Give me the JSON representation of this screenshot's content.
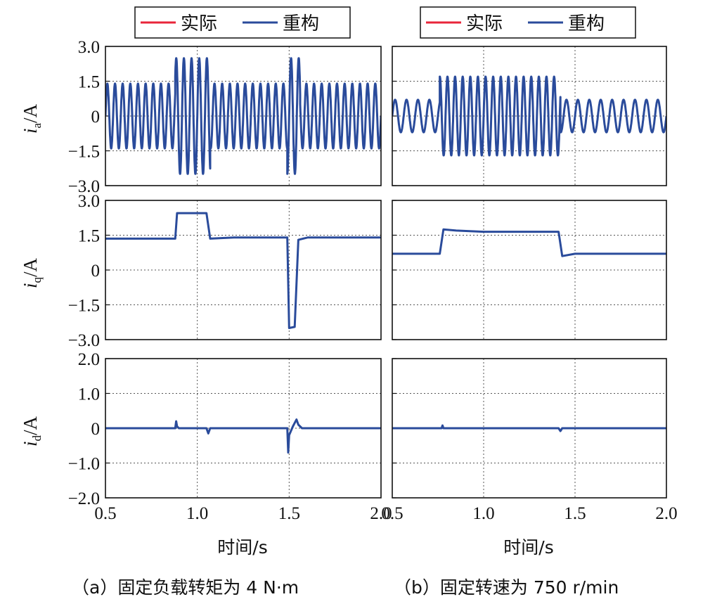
{
  "legend": {
    "actual": "实际",
    "reconstructed": "重构",
    "actual_color": "#e8253a",
    "reconstructed_color": "#2a4b9b"
  },
  "xlabel": "时间/s",
  "ylabels": [
    "i_a/A",
    "i_q/A",
    "i_d/A"
  ],
  "captions": {
    "a": "（a）固定负载转矩为 4 N·m",
    "b": "（b）固定转速为 750 r/min"
  },
  "chart_data": [
    {
      "type": "line",
      "panel": "a-top",
      "ylabel": "i_a/A",
      "xlim": [
        0.5,
        2.0
      ],
      "ylim": [
        -3.0,
        3.0
      ],
      "yticks": [
        "3.0",
        "1.5",
        "0",
        "−1.5",
        "−3.0"
      ],
      "series": [
        {
          "name": "实际",
          "signal": "sine",
          "segments": [
            {
              "x": [
                0.5,
                0.88
              ],
              "amplitude": 1.4,
              "freq": 24
            },
            {
              "x": [
                0.88,
                1.07
              ],
              "amplitude": 2.5,
              "freq": 24
            },
            {
              "x": [
                1.07,
                1.49
              ],
              "amplitude": 1.4,
              "freq": 24
            },
            {
              "x": [
                1.49,
                1.56
              ],
              "amplitude": 2.5,
              "freq": 24
            },
            {
              "x": [
                1.56,
                2.0
              ],
              "amplitude": 1.4,
              "freq": 24
            }
          ]
        },
        {
          "name": "重构",
          "signal": "sine",
          "segments": [
            {
              "x": [
                0.5,
                0.88
              ],
              "amplitude": 1.4,
              "freq": 24
            },
            {
              "x": [
                0.88,
                1.07
              ],
              "amplitude": 2.5,
              "freq": 24
            },
            {
              "x": [
                1.07,
                1.49
              ],
              "amplitude": 1.4,
              "freq": 24
            },
            {
              "x": [
                1.49,
                1.56
              ],
              "amplitude": 2.5,
              "freq": 24
            },
            {
              "x": [
                1.56,
                2.0
              ],
              "amplitude": 1.4,
              "freq": 24
            }
          ]
        }
      ]
    },
    {
      "type": "line",
      "panel": "a-mid",
      "ylabel": "i_q/A",
      "xlim": [
        0.5,
        2.0
      ],
      "ylim": [
        -3.0,
        3.0
      ],
      "yticks": [
        "3.0",
        "1.5",
        "0",
        "−1.5",
        "−3.0"
      ],
      "series": [
        {
          "name": "实际",
          "x": [
            0.5,
            0.88,
            0.89,
            1.05,
            1.07,
            1.2,
            1.49,
            1.5,
            1.53,
            1.55,
            1.6,
            2.0
          ],
          "y": [
            1.35,
            1.35,
            2.45,
            2.45,
            1.35,
            1.4,
            1.4,
            -2.5,
            -2.45,
            1.3,
            1.4,
            1.4
          ]
        },
        {
          "name": "重构",
          "x": [
            0.5,
            0.88,
            0.89,
            1.05,
            1.07,
            1.2,
            1.49,
            1.5,
            1.53,
            1.55,
            1.6,
            2.0
          ],
          "y": [
            1.35,
            1.35,
            2.45,
            2.45,
            1.35,
            1.4,
            1.4,
            -2.5,
            -2.45,
            1.3,
            1.4,
            1.4
          ]
        }
      ]
    },
    {
      "type": "line",
      "panel": "a-bot",
      "ylabel": "i_d/A",
      "xlabel": "时间/s",
      "xlim": [
        0.5,
        2.0
      ],
      "ylim": [
        -2.0,
        2.0
      ],
      "yticks": [
        "2.0",
        "1.0",
        "0",
        "−1.0",
        "−2.0"
      ],
      "xticks": [
        "0.5",
        "1.0",
        "1.5",
        "2.0"
      ],
      "series": [
        {
          "name": "实际",
          "x": [
            0.5,
            0.88,
            0.885,
            0.89,
            0.9,
            1.05,
            1.06,
            1.07,
            1.49,
            1.495,
            1.5,
            1.52,
            1.54,
            1.55,
            1.57,
            2.0
          ],
          "y": [
            0,
            0,
            0.2,
            0.05,
            0,
            0,
            -0.15,
            0,
            0,
            -0.7,
            -0.2,
            0.05,
            0.25,
            0.1,
            0,
            0
          ]
        },
        {
          "name": "重构",
          "x": [
            0.5,
            0.88,
            0.885,
            0.89,
            0.9,
            1.05,
            1.06,
            1.07,
            1.49,
            1.495,
            1.5,
            1.52,
            1.54,
            1.55,
            1.57,
            2.0
          ],
          "y": [
            0,
            0,
            0.2,
            0.05,
            0,
            0,
            -0.15,
            0,
            0,
            -0.7,
            -0.2,
            0.05,
            0.25,
            0.1,
            0,
            0
          ]
        }
      ]
    },
    {
      "type": "line",
      "panel": "b-top",
      "xlim": [
        0.5,
        2.0
      ],
      "ylim": [
        -3.0,
        3.0
      ],
      "series": [
        {
          "name": "实际",
          "signal": "sine",
          "segments": [
            {
              "x": [
                0.5,
                0.76
              ],
              "amplitude": 0.7,
              "freq": 16
            },
            {
              "x": [
                0.76,
                1.42
              ],
              "amplitude": 1.7,
              "freq": 24
            },
            {
              "x": [
                1.42,
                2.0
              ],
              "amplitude": 0.7,
              "freq": 16
            }
          ]
        },
        {
          "name": "重构",
          "signal": "sine",
          "segments": [
            {
              "x": [
                0.5,
                0.76
              ],
              "amplitude": 0.7,
              "freq": 16
            },
            {
              "x": [
                0.76,
                1.42
              ],
              "amplitude": 1.7,
              "freq": 24
            },
            {
              "x": [
                1.42,
                2.0
              ],
              "amplitude": 0.7,
              "freq": 16
            }
          ]
        }
      ]
    },
    {
      "type": "line",
      "panel": "b-mid",
      "xlim": [
        0.5,
        2.0
      ],
      "ylim": [
        -3.0,
        3.0
      ],
      "series": [
        {
          "name": "实际",
          "x": [
            0.5,
            0.76,
            0.78,
            0.85,
            1.0,
            1.41,
            1.43,
            1.5,
            2.0
          ],
          "y": [
            0.7,
            0.7,
            1.75,
            1.7,
            1.65,
            1.65,
            0.6,
            0.7,
            0.7
          ]
        },
        {
          "name": "重构",
          "x": [
            0.5,
            0.76,
            0.78,
            0.85,
            1.0,
            1.41,
            1.43,
            1.5,
            2.0
          ],
          "y": [
            0.7,
            0.7,
            1.75,
            1.7,
            1.65,
            1.65,
            0.6,
            0.7,
            0.7
          ]
        }
      ]
    },
    {
      "type": "line",
      "panel": "b-bot",
      "xlabel": "时间/s",
      "xlim": [
        0.5,
        2.0
      ],
      "ylim": [
        -2.0,
        2.0
      ],
      "xticks": [
        "0.5",
        "1.0",
        "1.5",
        "2.0"
      ],
      "series": [
        {
          "name": "实际",
          "x": [
            0.5,
            0.77,
            0.775,
            0.78,
            1.41,
            1.42,
            1.43,
            2.0
          ],
          "y": [
            0,
            0,
            0.08,
            0,
            0,
            -0.08,
            0,
            0
          ]
        },
        {
          "name": "重构",
          "x": [
            0.5,
            0.77,
            0.775,
            0.78,
            1.41,
            1.42,
            1.43,
            2.0
          ],
          "y": [
            0,
            0,
            0.08,
            0,
            0,
            -0.08,
            0,
            0
          ]
        }
      ]
    }
  ]
}
